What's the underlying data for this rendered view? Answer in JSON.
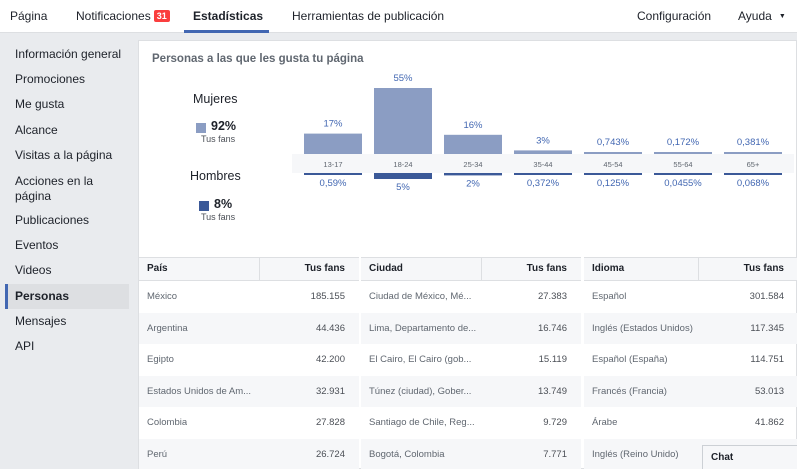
{
  "topnav": {
    "tabs": [
      {
        "label": "Página"
      },
      {
        "label": "Notificaciones",
        "badge": "31"
      },
      {
        "label": "Estadísticas"
      },
      {
        "label": "Herramientas de publicación"
      }
    ],
    "settings": "Configuración",
    "help": "Ayuda"
  },
  "sidebar": {
    "items": [
      {
        "label": "Información general"
      },
      {
        "label": "Promociones"
      },
      {
        "label": "Me gusta"
      },
      {
        "label": "Alcance"
      },
      {
        "label": "Visitas a la página"
      },
      {
        "label": "Acciones en la página"
      },
      {
        "label": "Publicaciones"
      },
      {
        "label": "Eventos"
      },
      {
        "label": "Videos"
      },
      {
        "label": "Personas"
      },
      {
        "label": "Mensajes"
      },
      {
        "label": "API"
      }
    ]
  },
  "main": {
    "title": "Personas a las que les gusta tu página",
    "women": {
      "title": "Mujeres",
      "pct": "92%",
      "sub": "Tus fans",
      "color": "#8b9dc3"
    },
    "men": {
      "title": "Hombres",
      "pct": "8%",
      "sub": "Tus fans",
      "color": "#3b5998"
    }
  },
  "chart_data": {
    "type": "bar",
    "categories": [
      "13-17",
      "18-24",
      "25-34",
      "35-44",
      "45-54",
      "55-64",
      "65+"
    ],
    "series": [
      {
        "name": "Mujeres",
        "values": [
          17,
          55,
          16,
          3,
          0.743,
          0.172,
          0.381
        ],
        "labels": [
          "17%",
          "55%",
          "16%",
          "3%",
          "0,743%",
          "0,172%",
          "0,381%"
        ],
        "color": "#8b9dc3"
      },
      {
        "name": "Hombres",
        "values": [
          0.59,
          5,
          2,
          0.372,
          0.125,
          0.0455,
          0.068
        ],
        "labels": [
          "0,59%",
          "5%",
          "2%",
          "0,372%",
          "0,125%",
          "0,0455%",
          "0,068%"
        ],
        "color": "#3b5998"
      }
    ],
    "ylim": [
      0,
      55
    ]
  },
  "tables": [
    {
      "header": [
        "País",
        "Tus fans"
      ],
      "rows": [
        [
          "México",
          "185.155"
        ],
        [
          "Argentina",
          "44.436"
        ],
        [
          "Egipto",
          "42.200"
        ],
        [
          "Estados Unidos de Am...",
          "32.931"
        ],
        [
          "Colombia",
          "27.828"
        ],
        [
          "Perú",
          "26.724"
        ]
      ]
    },
    {
      "header": [
        "Ciudad",
        "Tus fans"
      ],
      "rows": [
        [
          "Ciudad de México, Mé...",
          "27.383"
        ],
        [
          "Lima, Departamento de...",
          "16.746"
        ],
        [
          "El Cairo, El Cairo (gob...",
          "15.119"
        ],
        [
          "Túnez (ciudad), Gober...",
          "13.749"
        ],
        [
          "Santiago de Chile, Reg...",
          "9.729"
        ],
        [
          "Bogotá, Colombia",
          "7.771"
        ]
      ]
    },
    {
      "header": [
        "Idioma",
        "Tus fans"
      ],
      "rows": [
        [
          "Español",
          "301.584"
        ],
        [
          "Inglés (Estados Unidos)",
          "117.345"
        ],
        [
          "Español (España)",
          "114.751"
        ],
        [
          "Francés (Francia)",
          "53.013"
        ],
        [
          "Árabe",
          "41.862"
        ],
        [
          "Inglés (Reino Unido)",
          ""
        ]
      ]
    }
  ],
  "chat": {
    "label": "Chat (desactivado)"
  }
}
